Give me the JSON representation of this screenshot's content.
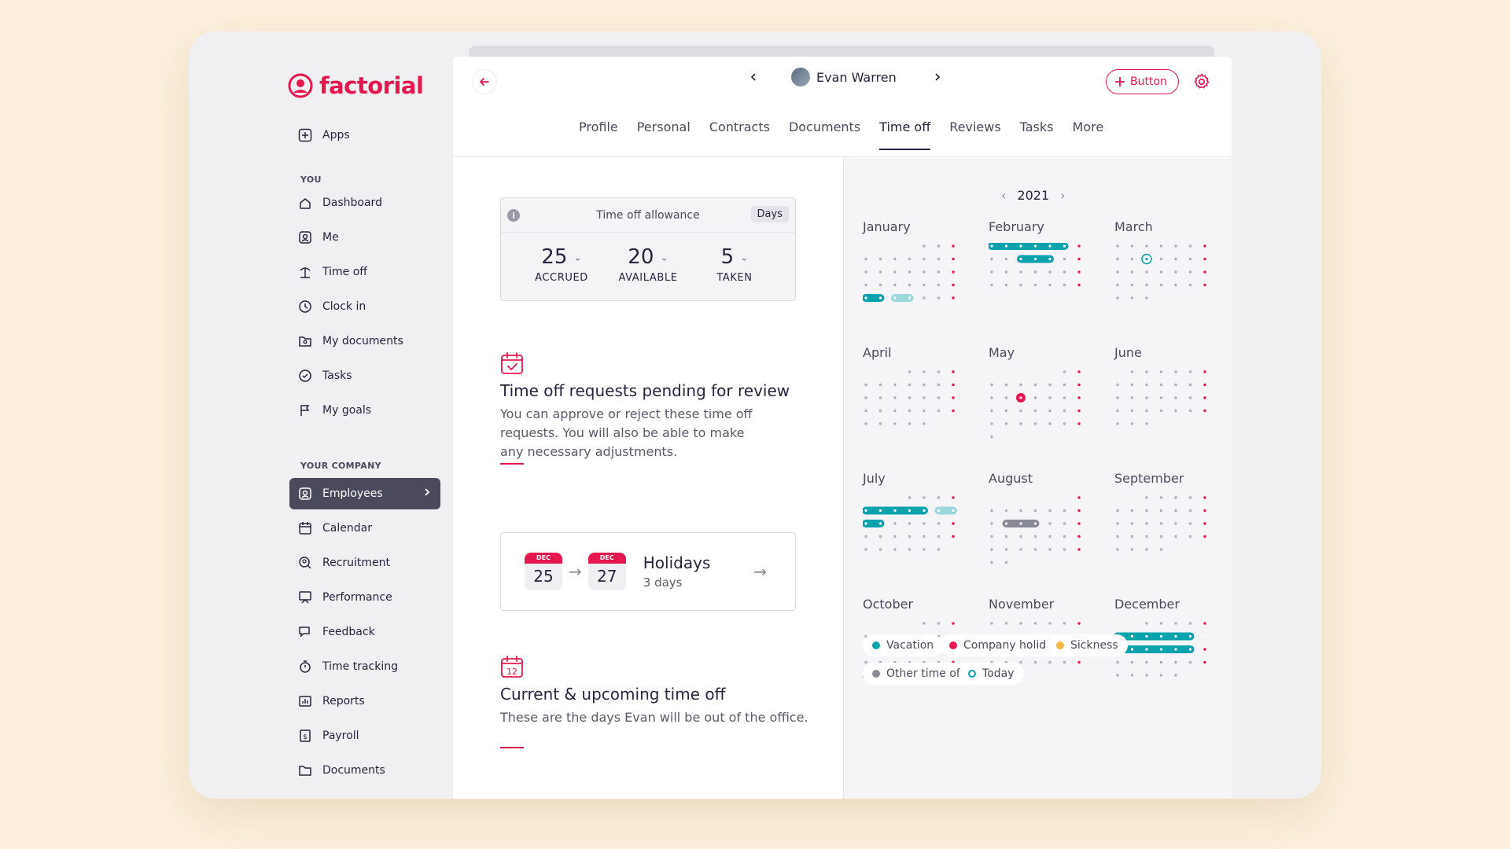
{
  "brand": {
    "name": "factorial",
    "color": "#e5174f"
  },
  "sidebar": {
    "apps": "Apps",
    "you_label": "YOU",
    "you_items": [
      {
        "label": "Dashboard",
        "icon": "home-icon"
      },
      {
        "label": "Me",
        "icon": "user-card-icon"
      },
      {
        "label": "Time off",
        "icon": "beach-icon"
      },
      {
        "label": "Clock in",
        "icon": "clock-icon"
      },
      {
        "label": "My documents",
        "icon": "folder-user-icon"
      },
      {
        "label": "Tasks",
        "icon": "check-circle-icon"
      },
      {
        "label": "My goals",
        "icon": "flag-icon"
      }
    ],
    "company_label": "YOUR COMPANY",
    "company_items": [
      {
        "label": "Employees",
        "icon": "employees-icon",
        "active": true
      },
      {
        "label": "Calendar",
        "icon": "calendar-icon"
      },
      {
        "label": "Recruitment",
        "icon": "recruitment-icon"
      },
      {
        "label": "Performance",
        "icon": "performance-icon"
      },
      {
        "label": "Feedback",
        "icon": "feedback-icon"
      },
      {
        "label": "Time tracking",
        "icon": "stopwatch-icon"
      },
      {
        "label": "Reports",
        "icon": "reports-icon"
      },
      {
        "label": "Payroll",
        "icon": "payroll-icon"
      },
      {
        "label": "Documents",
        "icon": "folder-icon"
      }
    ]
  },
  "header": {
    "employee_name": "Evan Warren",
    "button_label": "Button",
    "tabs": [
      "Profile",
      "Personal",
      "Contracts",
      "Documents",
      "Time off",
      "Reviews",
      "Tasks",
      "More"
    ],
    "active_tab": "Time off"
  },
  "allowance": {
    "title": "Time off allowance",
    "unit": "Days",
    "stats": [
      {
        "value": "25",
        "label": "ACCRUED"
      },
      {
        "value": "20",
        "label": "AVAILABLE"
      },
      {
        "value": "5",
        "label": "TAKEN"
      }
    ]
  },
  "pending": {
    "title": "Time off requests pending for review",
    "description": "You can approve or reject these time off requests. You will also be able to make any necessary adjustments.",
    "request": {
      "from": {
        "month": "DEC",
        "day": "25"
      },
      "to": {
        "month": "DEC",
        "day": "27"
      },
      "title": "Holidays",
      "subtitle": "3 days"
    }
  },
  "upcoming": {
    "title": "Current & upcoming time off",
    "description": "These are the days Evan will be out of the office."
  },
  "calendar": {
    "year": "2021",
    "months": [
      "January",
      "February",
      "March",
      "April",
      "May",
      "June",
      "July",
      "August",
      "September",
      "October",
      "November",
      "December"
    ]
  },
  "legend": [
    {
      "label": "Vacation",
      "color": "#0aa2ad"
    },
    {
      "label": "Company holiday",
      "color": "#e5174f"
    },
    {
      "label": "Sickness",
      "color": "#f3b944"
    },
    {
      "label": "Other time off",
      "color": "#8a8a96"
    },
    {
      "label": "Today",
      "color": "#0aa2ad"
    }
  ]
}
